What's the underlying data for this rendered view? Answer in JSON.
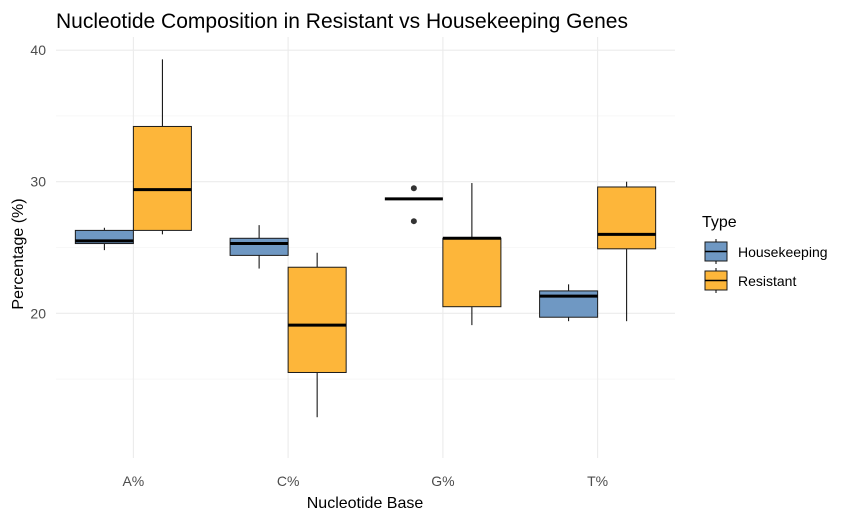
{
  "chart_data": {
    "type": "boxplot",
    "title": "Nucleotide Composition in Resistant vs Housekeeping Genes",
    "xlabel": "Nucleotide Base",
    "ylabel": "Percentage (%)",
    "categories": [
      "A%",
      "C%",
      "G%",
      "T%"
    ],
    "y_ticks": [
      20,
      30,
      40
    ],
    "ylim": [
      9.0,
      41.0
    ],
    "grid": true,
    "legend": {
      "title": "Type",
      "position": "right",
      "entries": [
        {
          "name": "Housekeeping",
          "color": "#6f98c3"
        },
        {
          "name": "Resistant",
          "color": "#fdb63a"
        }
      ]
    },
    "series": [
      {
        "name": "Housekeeping",
        "color": "#6f98c3",
        "boxes": [
          {
            "category": "A%",
            "min": 24.8,
            "q1": 25.3,
            "median": 25.5,
            "q3": 26.3,
            "max": 26.5,
            "outliers": []
          },
          {
            "category": "C%",
            "min": 23.4,
            "q1": 24.4,
            "median": 25.3,
            "q3": 25.7,
            "max": 26.7,
            "outliers": []
          },
          {
            "category": "G%",
            "min": 28.7,
            "q1": 28.7,
            "median": 28.7,
            "q3": 28.7,
            "max": 28.7,
            "outliers": [
              29.5,
              27.0
            ]
          },
          {
            "category": "T%",
            "min": 19.4,
            "q1": 19.7,
            "median": 21.3,
            "q3": 21.7,
            "max": 22.2,
            "outliers": []
          }
        ]
      },
      {
        "name": "Resistant",
        "color": "#fdb63a",
        "boxes": [
          {
            "category": "A%",
            "min": 26.0,
            "q1": 26.3,
            "median": 29.4,
            "q3": 34.2,
            "max": 39.3,
            "outliers": []
          },
          {
            "category": "C%",
            "min": 12.1,
            "q1": 15.5,
            "median": 19.1,
            "q3": 23.5,
            "max": 24.6,
            "outliers": []
          },
          {
            "category": "G%",
            "min": 19.1,
            "q1": 20.5,
            "median": 25.7,
            "q3": 25.7,
            "max": 29.9,
            "outliers": []
          },
          {
            "category": "T%",
            "min": 19.4,
            "q1": 24.9,
            "median": 26.0,
            "q3": 29.6,
            "max": 30.0,
            "outliers": []
          }
        ]
      }
    ]
  }
}
